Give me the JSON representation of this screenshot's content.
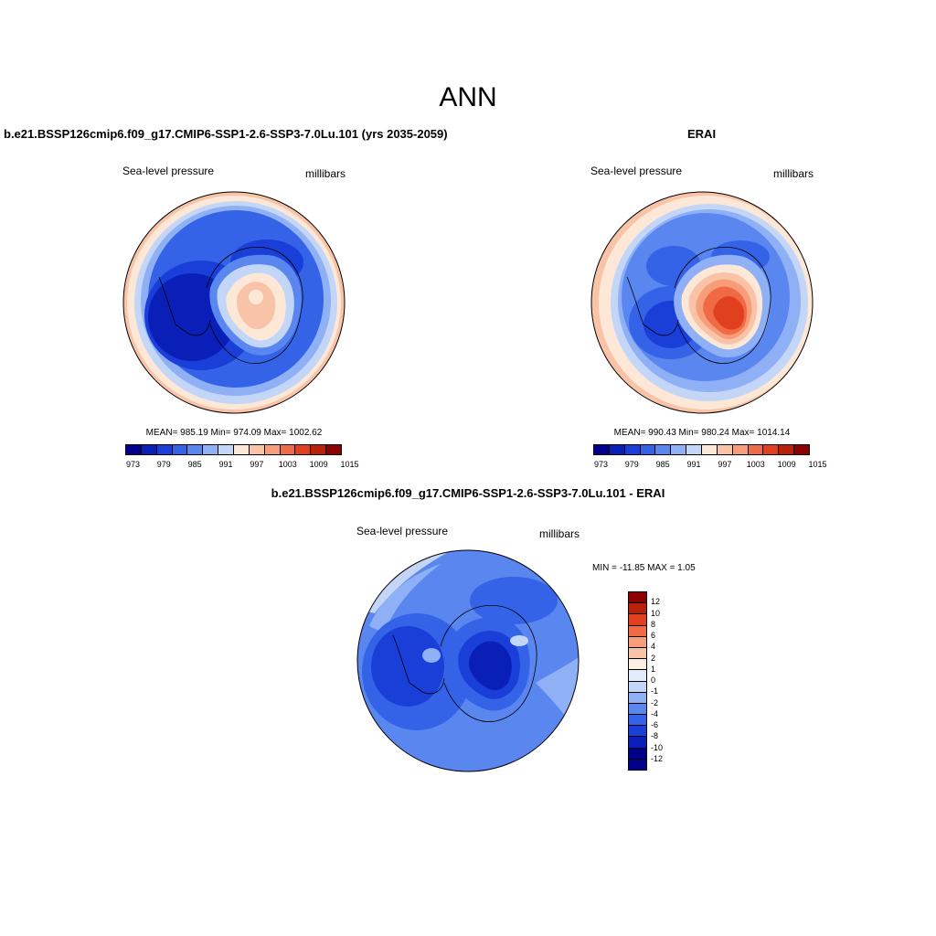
{
  "page_title": "ANN",
  "palette": [
    "#00008b",
    "#0a1fb8",
    "#1a3fd9",
    "#3563e8",
    "#5a86f0",
    "#8fb0f5",
    "#c4d6f8",
    "#fde8d8",
    "#f9c3a8",
    "#f79d7a",
    "#f06a45",
    "#e1401e",
    "#b8210c",
    "#8b0000"
  ],
  "diff_palette": [
    "#00008b",
    "#0a1fb8",
    "#1a3fd9",
    "#3563e8",
    "#5a86f0",
    "#8fb0f5",
    "#c4d6f8",
    "#e0ecfb",
    "#fdf0e0",
    "#f9c3a8",
    "#f79d7a",
    "#f06a45",
    "#e1401e",
    "#b8210c",
    "#8b0000"
  ],
  "panels": {
    "model": {
      "title": "b.e21.BSSP126cmip6.f09_g17.CMIP6-SSP1-2.6-SSP3-7.0Lu.101 (yrs 2035-2059)",
      "variable": "Sea-level pressure",
      "units": "millibars",
      "stats": "MEAN= 985.19  Min= 974.09  Max= 1002.62",
      "ticks": [
        "973",
        "979",
        "985",
        "991",
        "997",
        "1003",
        "1009",
        "1015"
      ]
    },
    "obs": {
      "title": "ERAI",
      "variable": "Sea-level pressure",
      "units": "millibars",
      "stats": "MEAN= 990.43  Min= 980.24  Max= 1014.14",
      "ticks": [
        "973",
        "979",
        "985",
        "991",
        "997",
        "1003",
        "1009",
        "1015"
      ]
    },
    "diff": {
      "title": "b.e21.BSSP126cmip6.f09_g17.CMIP6-SSP1-2.6-SSP3-7.0Lu.101 - ERAI",
      "variable": "Sea-level pressure",
      "units": "millibars",
      "stats": "MIN = -11.85 MAX =   1.05",
      "ticks": [
        "12",
        "10",
        "8",
        "6",
        "4",
        "2",
        "1",
        "0",
        "-1",
        "-2",
        "-4",
        "-6",
        "-8",
        "-10",
        "-12"
      ]
    }
  }
}
